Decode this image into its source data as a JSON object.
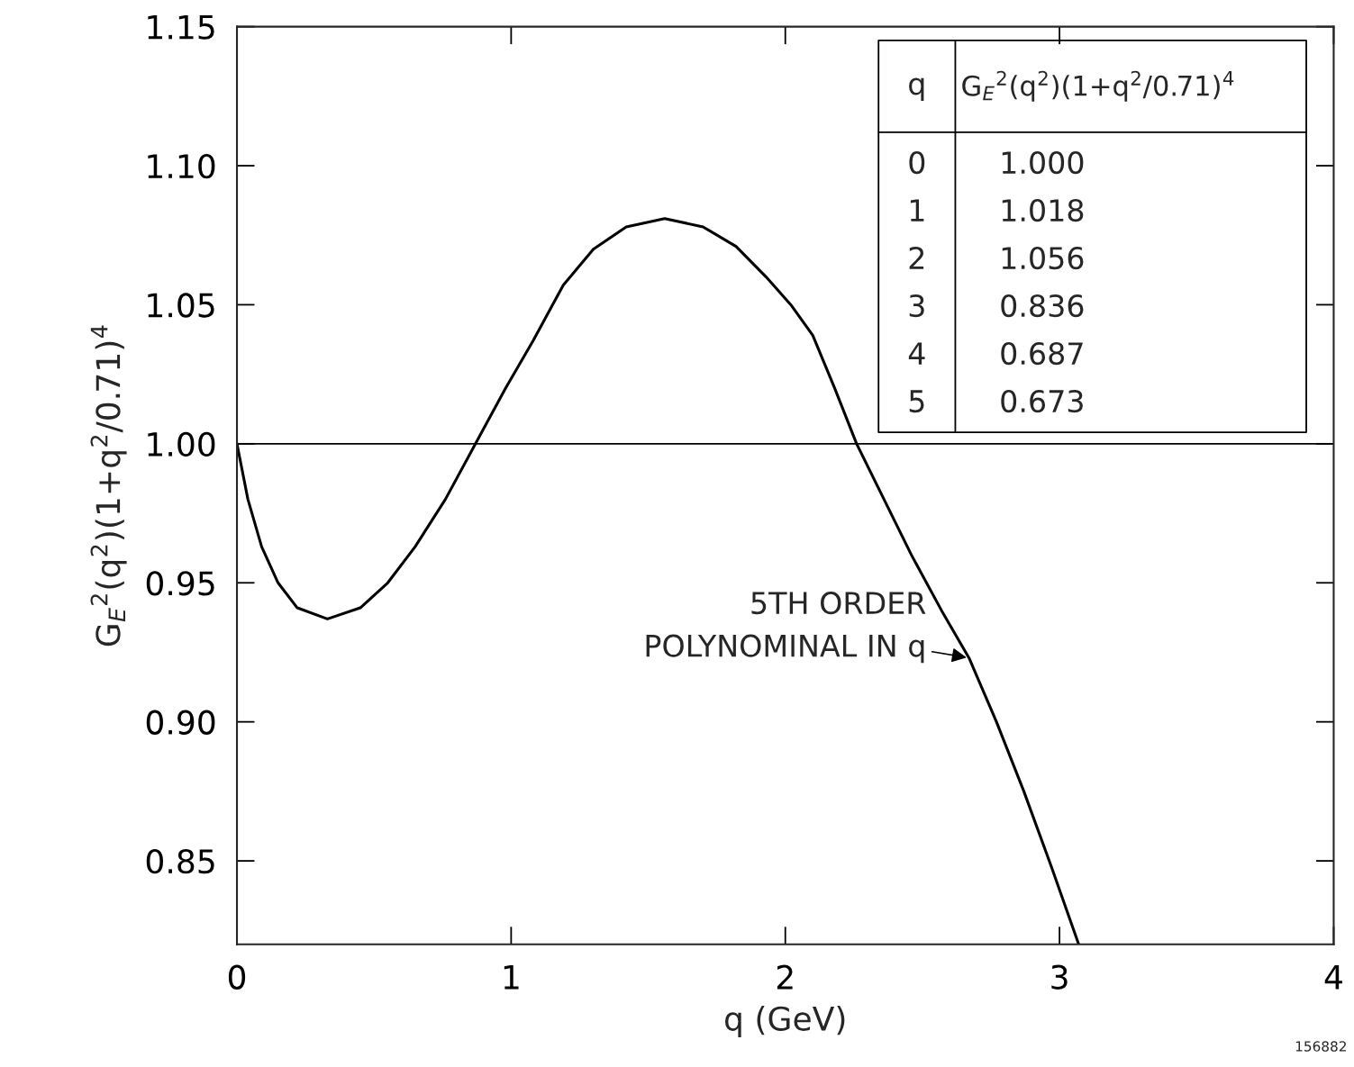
{
  "chart_data": {
    "type": "line",
    "xlabel": "q (GeV)",
    "ylabel": "G$_{E}$$^{2}$(q$^{2}$)(1+q$^{2}$/0.71)$^{4}$",
    "series": [
      {
        "color": "#000000",
        "x": [
          0,
          0.04,
          0.09,
          0.15,
          0.22,
          0.33,
          0.45,
          0.55,
          0.65,
          0.76,
          0.87,
          0.98,
          1.08,
          1.19,
          1.3,
          1.42,
          1.56,
          1.7,
          1.82,
          1.93,
          2.02,
          2.1,
          2.18,
          2.26,
          2.36,
          2.46,
          2.57,
          2.67,
          2.77,
          2.87,
          2.97,
          3.07
        ],
        "values": [
          1.0,
          0.98,
          0.963,
          0.95,
          0.941,
          0.937,
          0.941,
          0.95,
          0.963,
          0.98,
          1.0,
          1.02,
          1.037,
          1.057,
          1.07,
          1.078,
          1.081,
          1.078,
          1.071,
          1.06,
          1.05,
          1.039,
          1.02,
          1.0,
          0.98,
          0.96,
          0.94,
          0.923,
          0.9,
          0.875,
          0.848,
          0.82
        ]
      }
    ],
    "xlim": [
      0,
      4
    ],
    "xticks": [
      0,
      1,
      2,
      3,
      4
    ],
    "ylim": [
      0.82,
      1.15
    ],
    "yticks": [
      {
        "value": 0.85,
        "label": "0.85"
      },
      {
        "value": 0.9,
        "label": "0.90"
      },
      {
        "value": 0.95,
        "label": "0.95"
      },
      {
        "value": 1.0,
        "label": "1.00"
      },
      {
        "value": 1.05,
        "label": "1.05"
      },
      {
        "value": 1.1,
        "label": "1.10"
      },
      {
        "value": 1.15,
        "label": "1.15"
      }
    ],
    "ref_lines": [
      {
        "axis": "y",
        "value": 1.0,
        "color": "#000000"
      }
    ],
    "grid": false,
    "legend": false,
    "marker": "none",
    "line_style": "solid",
    "annotations": [
      {
        "text": "5TH ORDER\nPOLYNOMINAL IN q",
        "x": 2.67,
        "y": 0.923
      },
      "q",
      "G$_{E}$$^{2}$(q$^{2}$)(1+q$^{2}$/0.71)$^{4}$",
      "0",
      "1.000",
      "1",
      "1.018",
      "2",
      "1.056",
      "3",
      "0.836",
      "4",
      "0.687",
      "5",
      "0.673",
      "156882"
    ]
  }
}
